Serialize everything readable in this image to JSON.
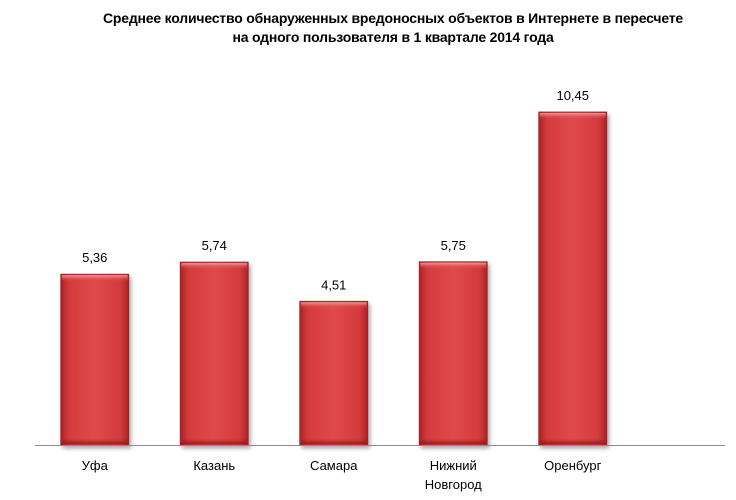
{
  "chart_data": {
    "type": "bar",
    "title_lines": [
      "Среднее количество обнаруженных вредоносных объектов в Интернете в пересчете",
      "на одного пользователя в 1 квартале 2014 года"
    ],
    "categories": [
      [
        "Уфа"
      ],
      [
        "Казань"
      ],
      [
        "Самара"
      ],
      [
        "Нижний",
        "Новгород"
      ],
      [
        "Оренбург"
      ]
    ],
    "values": [
      5.36,
      5.74,
      4.51,
      5.75,
      10.45
    ],
    "value_labels": [
      "5,36",
      "5,74",
      "4,51",
      "5,75",
      "10,45"
    ],
    "ylim": [
      0,
      10.45
    ],
    "bar_color": "#d43a3c",
    "grid": false,
    "legend": "none"
  }
}
